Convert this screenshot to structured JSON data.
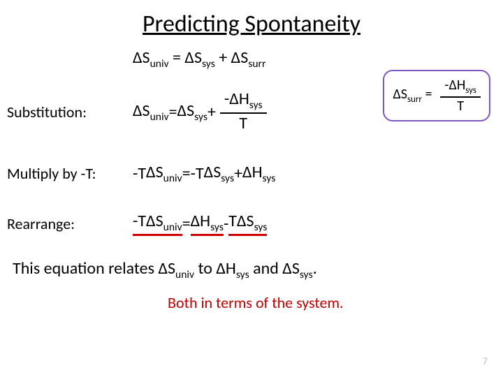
{
  "title": "Predicting Spontaneity",
  "eq1": {
    "lhs": "ΔS",
    "lhs_sub": "univ",
    "eq": " = ",
    "r1": "ΔS",
    "r1_sub": "sys",
    "plus": " + ",
    "r2": "ΔS",
    "r2_sub": "surr"
  },
  "callout": {
    "lhs": "ΔS",
    "lhs_sub": "surr",
    "eq": " = ",
    "num_pre": "-ΔH",
    "num_sub": "sys",
    "den": "T",
    "border_color": "#7e57c2"
  },
  "rows": {
    "substitution": {
      "label": "Substitution:",
      "lhs": "ΔS",
      "lhs_sub": "univ",
      "eq": " = ",
      "r1": "ΔS",
      "r1_sub": "sys",
      "plus": " + ",
      "frac_num_pre": "-ΔH",
      "frac_num_sub": "sys",
      "frac_den": "T"
    },
    "multiply": {
      "label": "Multiply by -T:",
      "lhs_pre": "-T",
      "lhs": "ΔS",
      "lhs_sub": "univ",
      "eq": " = ",
      "r1_pre": "-T",
      "r1": "ΔS",
      "r1_sub": "sys",
      "plus": " +  ",
      "r2": "ΔH",
      "r2_sub": "sys"
    },
    "rearrange": {
      "label": "Rearrange:",
      "lhs_pre": "-T",
      "lhs": "ΔS",
      "lhs_sub": "univ",
      "eq": " = ",
      "r1": "ΔH",
      "r1_sub": "sys",
      "minus": " -  ",
      "r2_pre": "T",
      "r2": "ΔS",
      "r2_sub": "sys"
    }
  },
  "relation": {
    "pre": "This equation relates ",
    "a": "ΔS",
    "a_sub": "univ",
    "mid": " to ",
    "b": "ΔH",
    "b_sub": "sys",
    "and": " and ",
    "c": "ΔS",
    "c_sub": "sys",
    "post": "."
  },
  "both_line": "Both in terms of the system.",
  "pagenum": "7",
  "colors": {
    "underline": "#c00",
    "both_text": "#c00000",
    "pagenum": "#bfbfbf"
  }
}
